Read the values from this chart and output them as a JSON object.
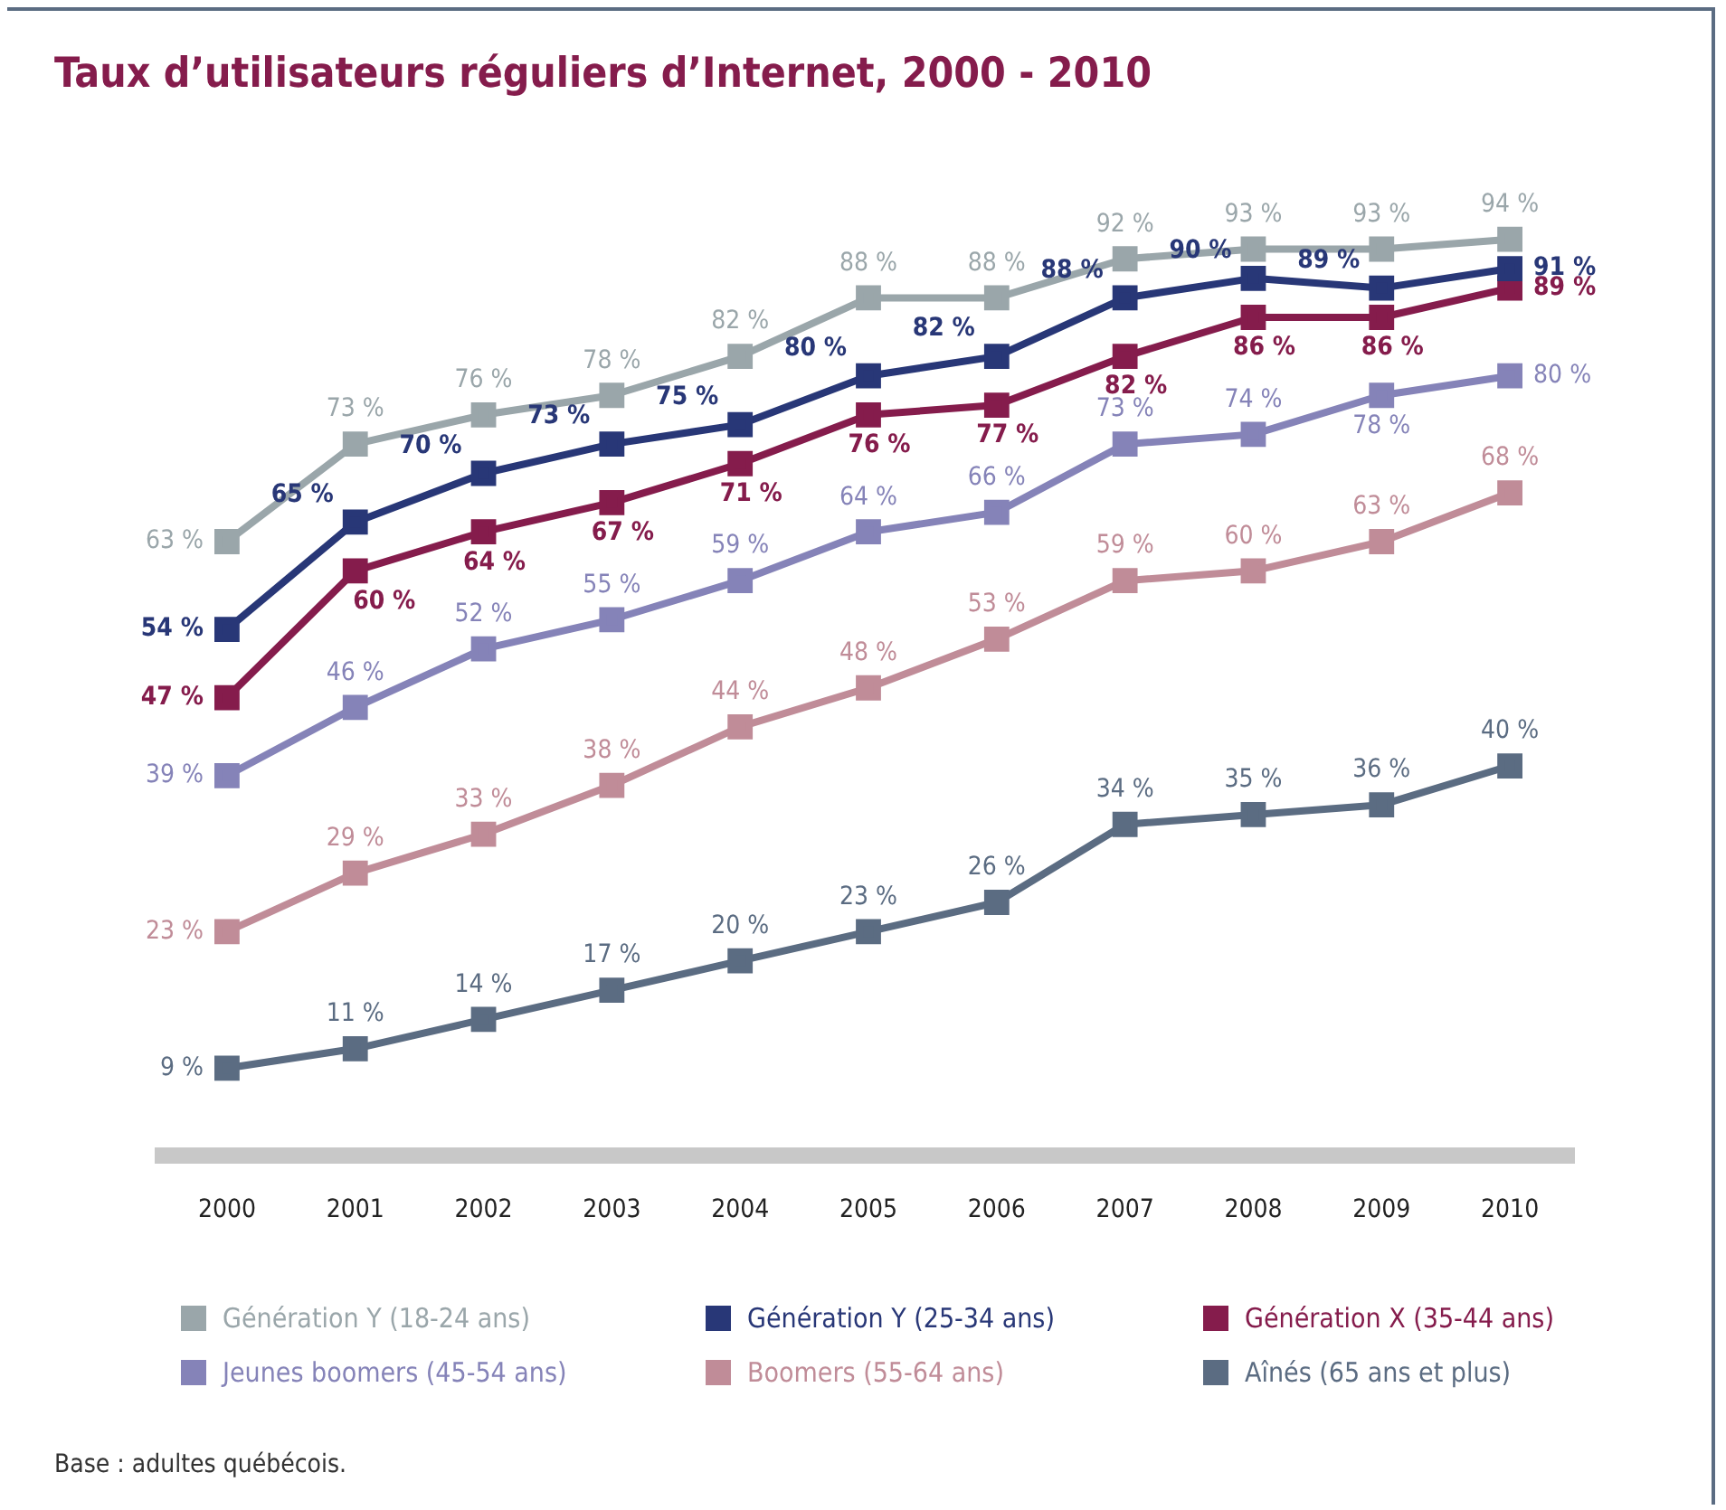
{
  "chart_data": {
    "type": "line",
    "title": "Taux d’utilisateurs réguliers d’Internet, 2000 - 2010",
    "categories": [
      "2000",
      "2001",
      "2002",
      "2003",
      "2004",
      "2005",
      "2006",
      "2007",
      "2008",
      "2009",
      "2010"
    ],
    "tick_labels": "x",
    "grid": false,
    "legend": "bottom",
    "marker": "square",
    "line_style": "solid",
    "series": [
      {
        "name": "Génération Y (18-24 ans)",
        "color": "#9aa6aa",
        "values": [
          63,
          73,
          76,
          78,
          82,
          88,
          88,
          92,
          93,
          93,
          94
        ],
        "value_labels": [
          "63 %",
          "73 %",
          "76 %",
          "78 %",
          "82 %",
          "88 %",
          "88 %",
          "92 %",
          "93 %",
          "93 %",
          "94 %"
        ]
      },
      {
        "name": "Génération Y (25-34 ans)",
        "color": "#283777",
        "values": [
          54,
          65,
          70,
          73,
          75,
          80,
          82,
          88,
          90,
          89,
          91
        ],
        "value_labels": [
          "54 %",
          "65 %",
          "70 %",
          "73 %",
          "75 %",
          "80 %",
          "82 %",
          "88 %",
          "90 %",
          "89 %",
          "91 %"
        ]
      },
      {
        "name": "Génération X (35-44 ans)",
        "color": "#851c4c",
        "values": [
          47,
          60,
          64,
          67,
          71,
          76,
          77,
          82,
          86,
          86,
          89
        ],
        "value_labels": [
          "47 %",
          "60 %",
          "64 %",
          "67 %",
          "71 %",
          "76 %",
          "77 %",
          "82 %",
          "86 %",
          "86 %",
          "89 %"
        ]
      },
      {
        "name": "Jeunes boomers (45-54 ans)",
        "color": "#8583b8",
        "values": [
          39,
          46,
          52,
          55,
          59,
          64,
          66,
          73,
          74,
          78,
          80
        ],
        "value_labels": [
          "39 %",
          "46 %",
          "52 %",
          "55 %",
          "59 %",
          "64 %",
          "66 %",
          "73 %",
          "74 %",
          "78 %",
          "80 %"
        ]
      },
      {
        "name": "Boomers (55-64 ans)",
        "color": "#c08c98",
        "values": [
          23,
          29,
          33,
          38,
          44,
          48,
          53,
          59,
          60,
          63,
          68
        ],
        "value_labels": [
          "23 %",
          "29 %",
          "33 %",
          "38 %",
          "44 %",
          "48 %",
          "53 %",
          "59 %",
          "60 %",
          "63 %",
          "68 %"
        ]
      },
      {
        "name": "Aînés (65 ans et plus)",
        "color": "#5b6c82",
        "values": [
          9,
          11,
          14,
          17,
          20,
          23,
          26,
          34,
          35,
          36,
          40
        ],
        "value_labels": [
          "9 %",
          "11 %",
          "14 %",
          "17 %",
          "20 %",
          "23 %",
          "26 %",
          "34 %",
          "35 %",
          "36 %",
          "40 %"
        ]
      }
    ],
    "annotations": [
      "Base : adultes québécois."
    ]
  }
}
